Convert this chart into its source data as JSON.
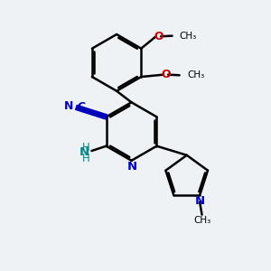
{
  "bg_color": "#eef2f4",
  "bond_color": "#000000",
  "bond_width": 1.8,
  "nitrogen_color": "#0000cc",
  "oxygen_color": "#cc0000",
  "amino_color": "#008888",
  "cyano_color": "#0000bb",
  "figsize": [
    3.0,
    3.0
  ],
  "dpi": 100,
  "xlim": [
    0,
    10
  ],
  "ylim": [
    0,
    10
  ]
}
